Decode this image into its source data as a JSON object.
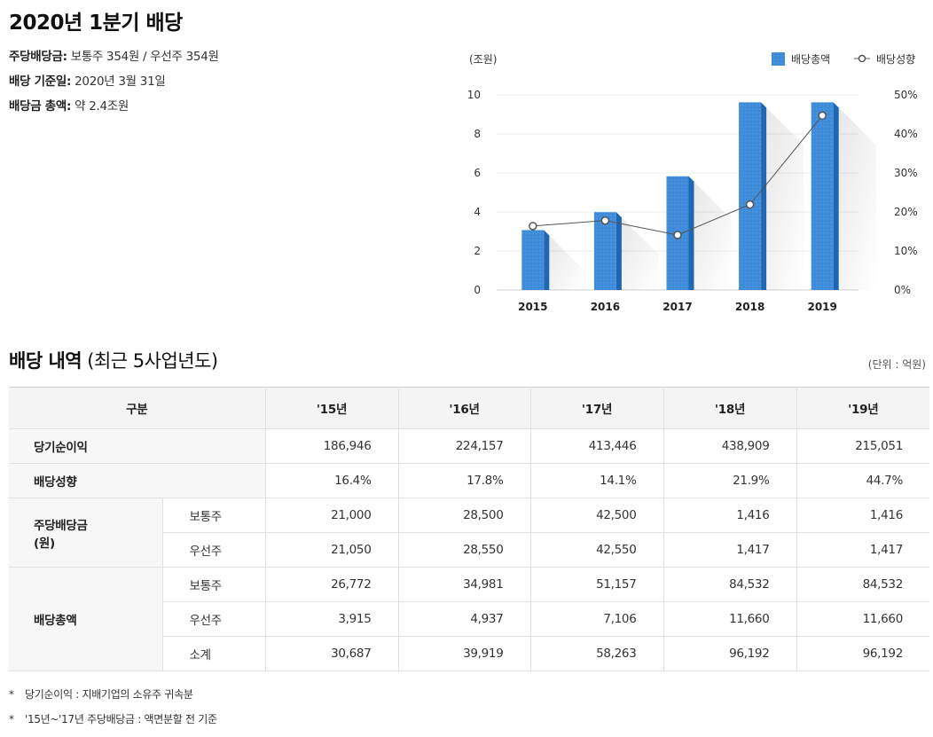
{
  "title": "2020년 1분기 배당",
  "summary": [
    {
      "label": "주당배당금:",
      "value": "보통주 354원 / 우선주 354원"
    },
    {
      "label": "배당 기준일:",
      "value": "2020년 3월 31일"
    },
    {
      "label": "배당금 총액:",
      "value": "약 2.4조원"
    }
  ],
  "chart_data": {
    "type": "bar",
    "categories": [
      "2015",
      "2016",
      "2017",
      "2018",
      "2019"
    ],
    "series": [
      {
        "name": "배당총액",
        "type": "bar",
        "axis": "left",
        "values": [
          3.07,
          3.99,
          5.83,
          9.62,
          9.62
        ]
      },
      {
        "name": "배당성향",
        "type": "line",
        "axis": "right",
        "values": [
          16.4,
          17.8,
          14.1,
          21.9,
          44.7
        ]
      }
    ],
    "ylabel": "(조원)",
    "ylim": [
      0,
      10
    ],
    "yticks": [
      "0",
      "2",
      "4",
      "6",
      "8",
      "10"
    ],
    "y2lim": [
      0,
      50
    ],
    "y2ticks": [
      "0%",
      "10%",
      "20%",
      "30%",
      "40%",
      "50%"
    ],
    "legend": "top-right",
    "colors": {
      "bar": "#3d8bd9",
      "bar_dark": "#1f66b3",
      "line": "#555555"
    }
  },
  "section": {
    "title_bold": "배당 내역",
    "title_rest": " (최근 5사업년도)",
    "unit": "(단위 : 억원)"
  },
  "table": {
    "header": [
      "구분",
      "'15년",
      "'16년",
      "'17년",
      "'18년",
      "'19년"
    ],
    "net_income": {
      "label": "당기순이익",
      "values": [
        "186,946",
        "224,157",
        "413,446",
        "438,909",
        "215,051"
      ]
    },
    "payout": {
      "label": "배당성향",
      "values": [
        "16.4%",
        "17.8%",
        "14.1%",
        "21.9%",
        "44.7%"
      ]
    },
    "dps": {
      "label_line1": "주당배당금",
      "label_line2": "(원)",
      "common": {
        "label": "보통주",
        "values": [
          "21,000",
          "28,500",
          "42,500",
          "1,416",
          "1,416"
        ]
      },
      "preferred": {
        "label": "우선주",
        "values": [
          "21,050",
          "28,550",
          "42,550",
          "1,417",
          "1,417"
        ]
      }
    },
    "total": {
      "label": "배당총액",
      "common": {
        "label": "보통주",
        "values": [
          "26,772",
          "34,981",
          "51,157",
          "84,532",
          "84,532"
        ]
      },
      "preferred": {
        "label": "우선주",
        "values": [
          "3,915",
          "4,937",
          "7,106",
          "11,660",
          "11,660"
        ]
      },
      "subtotal": {
        "label": "소계",
        "values": [
          "30,687",
          "39,919",
          "58,263",
          "96,192",
          "96,192"
        ]
      }
    }
  },
  "notes": [
    {
      "star": "*",
      "text": "당기순이익 : 지배기업의 소유주 귀속분"
    },
    {
      "star": "*",
      "text": "'15년~'17년 주당배당금 : 액면분할 전 기준"
    }
  ]
}
